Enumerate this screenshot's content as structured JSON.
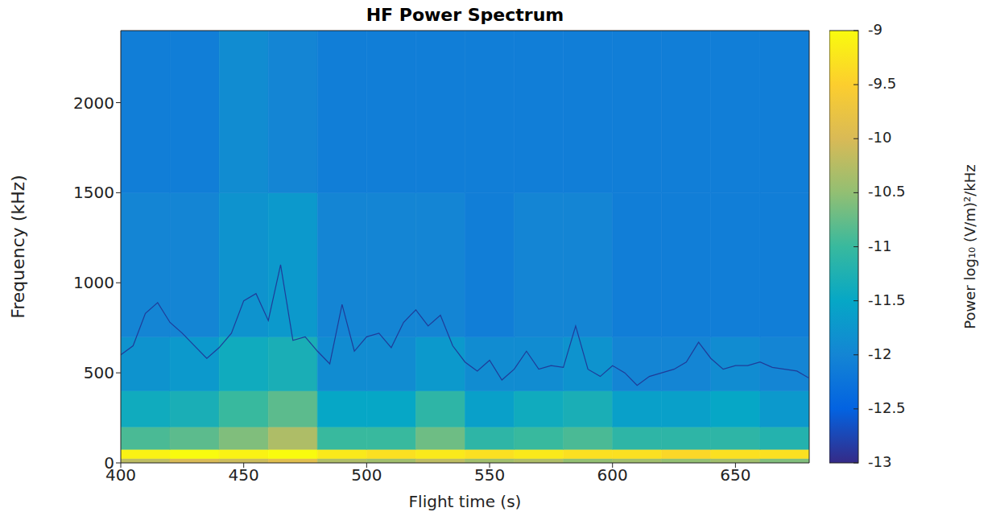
{
  "chart_data": {
    "type": "heatmap",
    "title": "HF Power Spectrum",
    "x_label": "Flight time (s)",
    "y_label": "Frequency (kHz)",
    "xlim": [
      400,
      680
    ],
    "xticks": [
      400,
      450,
      500,
      550,
      600,
      650
    ],
    "ylim": [
      0,
      2400
    ],
    "yticks": [
      0,
      500,
      1000,
      1500,
      2000
    ],
    "x_edges": [
      400,
      420,
      440,
      460,
      480,
      500,
      520,
      540,
      560,
      580,
      600,
      620,
      640,
      660,
      680
    ],
    "y_edges": [
      0,
      25,
      75,
      200,
      400,
      700,
      1500,
      2400
    ],
    "cells": [
      [
        -10.2,
        -10.0,
        -10.1,
        -9.9,
        -10.3,
        -10.4,
        -10.2,
        -10.4,
        -10.3,
        -10.5,
        -10.4,
        -10.5,
        -10.4,
        -10.6
      ],
      [
        -9.1,
        -9.0,
        -9.1,
        -9.0,
        -9.2,
        -9.3,
        -9.2,
        -9.3,
        -9.2,
        -9.3,
        -9.3,
        -9.4,
        -9.3,
        -9.3
      ],
      [
        -10.9,
        -10.8,
        -10.6,
        -10.3,
        -11.0,
        -11.0,
        -10.7,
        -11.1,
        -11.0,
        -10.9,
        -11.1,
        -11.1,
        -11.1,
        -11.2
      ],
      [
        -11.4,
        -11.3,
        -11.0,
        -10.8,
        -11.5,
        -11.5,
        -11.1,
        -11.6,
        -11.4,
        -11.3,
        -11.6,
        -11.6,
        -11.5,
        -11.7
      ],
      [
        -11.8,
        -11.7,
        -11.4,
        -11.3,
        -11.9,
        -11.9,
        -11.7,
        -11.9,
        -11.9,
        -11.8,
        -12.0,
        -12.0,
        -11.9,
        -12.0
      ],
      [
        -12.0,
        -12.0,
        -11.8,
        -11.7,
        -12.0,
        -12.0,
        -12.0,
        -12.1,
        -12.0,
        -12.0,
        -12.1,
        -12.1,
        -12.1,
        -12.1
      ],
      [
        -12.1,
        -12.1,
        -11.9,
        -12.0,
        -12.1,
        -12.1,
        -12.1,
        -12.1,
        -12.1,
        -12.1,
        -12.1,
        -12.1,
        -12.1,
        -12.1
      ]
    ],
    "colorbar_range": [
      -13,
      -9
    ],
    "colorbar_ticks": [
      -13,
      -12.5,
      -12,
      -11.5,
      -11,
      -10.5,
      -10,
      -9.5,
      -9
    ],
    "colorbar_label": "Power log₁₀ (V/m)²/kHz",
    "x": [
      400,
      405,
      410,
      415,
      420,
      425,
      430,
      435,
      440,
      445,
      450,
      455,
      460,
      465,
      470,
      475,
      480,
      485,
      490,
      495,
      500,
      505,
      510,
      515,
      520,
      525,
      530,
      535,
      540,
      545,
      550,
      555,
      560,
      565,
      570,
      575,
      580,
      585,
      590,
      595,
      600,
      605,
      610,
      615,
      620,
      625,
      630,
      635,
      640,
      645,
      650,
      655,
      660,
      665,
      670,
      675,
      680
    ],
    "series": [
      {
        "type": "line",
        "color": "#1f3c99",
        "values": [
          600,
          650,
          830,
          890,
          780,
          720,
          650,
          580,
          640,
          720,
          900,
          940,
          790,
          1100,
          680,
          700,
          620,
          550,
          880,
          620,
          700,
          720,
          640,
          780,
          850,
          760,
          820,
          650,
          560,
          510,
          570,
          460,
          520,
          620,
          520,
          540,
          530,
          760,
          520,
          480,
          540,
          500,
          430,
          480,
          500,
          520,
          560,
          670,
          580,
          520,
          540,
          540,
          560,
          530,
          520,
          510,
          470
        ]
      }
    ]
  }
}
